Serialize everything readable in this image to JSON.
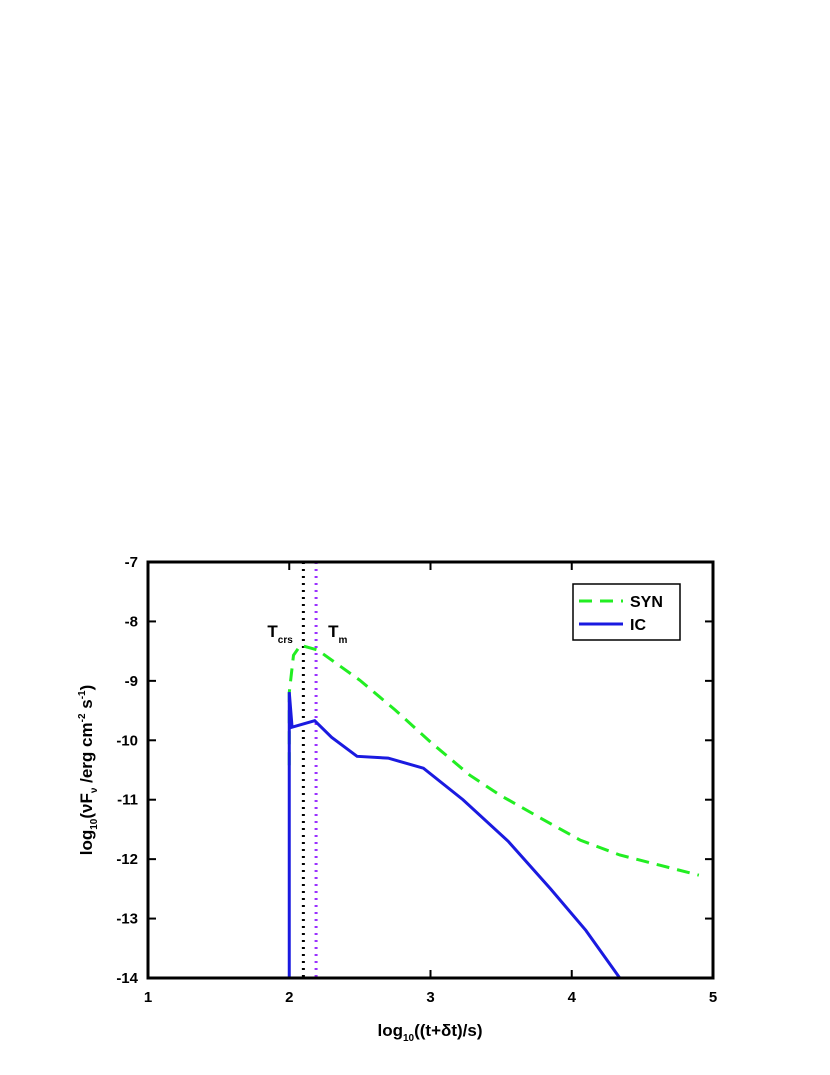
{
  "chart_data": {
    "type": "line",
    "x_label": [
      "log",
      "10",
      "((t+δt)/s)"
    ],
    "y_label": [
      "log",
      "10",
      "(νF",
      "ν",
      " /erg cm",
      "-2",
      " s",
      "-1",
      ")"
    ],
    "xlim": [
      1,
      5
    ],
    "xticks": [
      1,
      2,
      3,
      4,
      5
    ],
    "ylim": [
      -14,
      -7
    ],
    "yticks": [
      -14,
      -13,
      -12,
      -11,
      -10,
      -9,
      -8,
      -7
    ],
    "legend": "upper right",
    "series": [
      {
        "name": "SYN",
        "color": "#22ee22",
        "dash": true,
        "x": [
          2.0,
          2.0,
          2.03,
          2.08,
          2.2,
          2.5,
          2.75,
          3.0,
          3.28,
          3.49,
          3.78,
          4.06,
          4.34,
          4.62,
          4.9
        ],
        "values": [
          -10.42,
          -9.2,
          -8.57,
          -8.4,
          -8.48,
          -8.99,
          -9.49,
          -10.03,
          -10.59,
          -10.92,
          -11.31,
          -11.68,
          -11.93,
          -12.1,
          -12.27
        ]
      },
      {
        "name": "IC",
        "color": "#1a1ae0",
        "dash": false,
        "x": [
          2.0,
          2.0,
          2.02,
          2.18,
          2.3,
          2.48,
          2.7,
          2.95,
          3.23,
          3.55,
          3.85,
          4.1,
          4.34
        ],
        "values": [
          -14,
          -9.19,
          -9.78,
          -9.67,
          -9.95,
          -10.27,
          -10.3,
          -10.47,
          -11.0,
          -11.7,
          -12.5,
          -13.2,
          -14.0
        ]
      }
    ],
    "vlines": [
      {
        "x": 2.1,
        "color": "#000000",
        "label": [
          "T",
          "crs"
        ]
      },
      {
        "x": 2.19,
        "color": "#9b30ff",
        "label": [
          "T",
          "m"
        ]
      }
    ]
  }
}
